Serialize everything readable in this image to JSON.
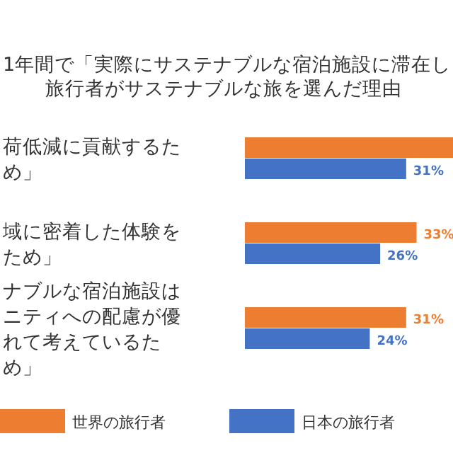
{
  "chart_data": {
    "type": "bar",
    "orientation": "horizontal",
    "title": "1年間で「実際にサステナブルな宿泊施設に滞在し",
    "subtitle": "旅行者がサステナブルな旅を選んだ理由",
    "categories": [
      "荷低減に貢献するため」",
      "域に密着した体験をため」",
      "ナブルな宿泊施設はニティへの配慮が優れて考えているため」"
    ],
    "series": [
      {
        "name": "世界の旅行者",
        "color": "#ed7d31",
        "values": [
          40,
          33,
          31
        ],
        "value_labels": [
          null,
          "33%",
          "31%"
        ]
      },
      {
        "name": "日本の旅行者",
        "color": "#4472c4",
        "values": [
          31,
          26,
          24
        ],
        "value_labels": [
          "31%",
          "26%",
          "24%"
        ]
      }
    ],
    "legend": "bottom"
  }
}
